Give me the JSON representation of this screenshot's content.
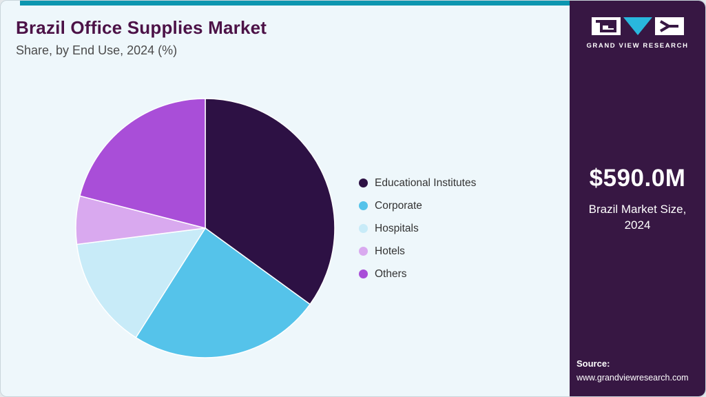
{
  "header": {
    "title": "Brazil Office Supplies Market",
    "subtitle": "Share, by End Use, 2024 (%)"
  },
  "sidebar": {
    "brand": "GRAND VIEW RESEARCH",
    "market_size": "$590.0M",
    "market_label": "Brazil Market Size, 2024",
    "source_label": "Source:",
    "source_url": "www.grandviewresearch.com"
  },
  "chart_data": {
    "type": "pie",
    "title": "Brazil Office Supplies Market Share, by End Use, 2024 (%)",
    "categories": [
      "Educational Institutes",
      "Corporate",
      "Hospitals",
      "Hotels",
      "Others"
    ],
    "values": [
      35,
      24,
      14,
      6,
      21
    ],
    "colors": [
      "#2d1144",
      "#55c3ea",
      "#c8ebf8",
      "#d9a9ef",
      "#a94ed8"
    ],
    "start_angle_deg": -90,
    "direction": "clockwise",
    "legend_position": "right",
    "slice_stroke": "#ffffff"
  },
  "colors": {
    "accent_bar": "#0c96b0",
    "sidebar_bg": "#371743",
    "title_color": "#4c1247",
    "card_bg": "#eef7fb",
    "logo_cyan": "#29b7dd"
  }
}
